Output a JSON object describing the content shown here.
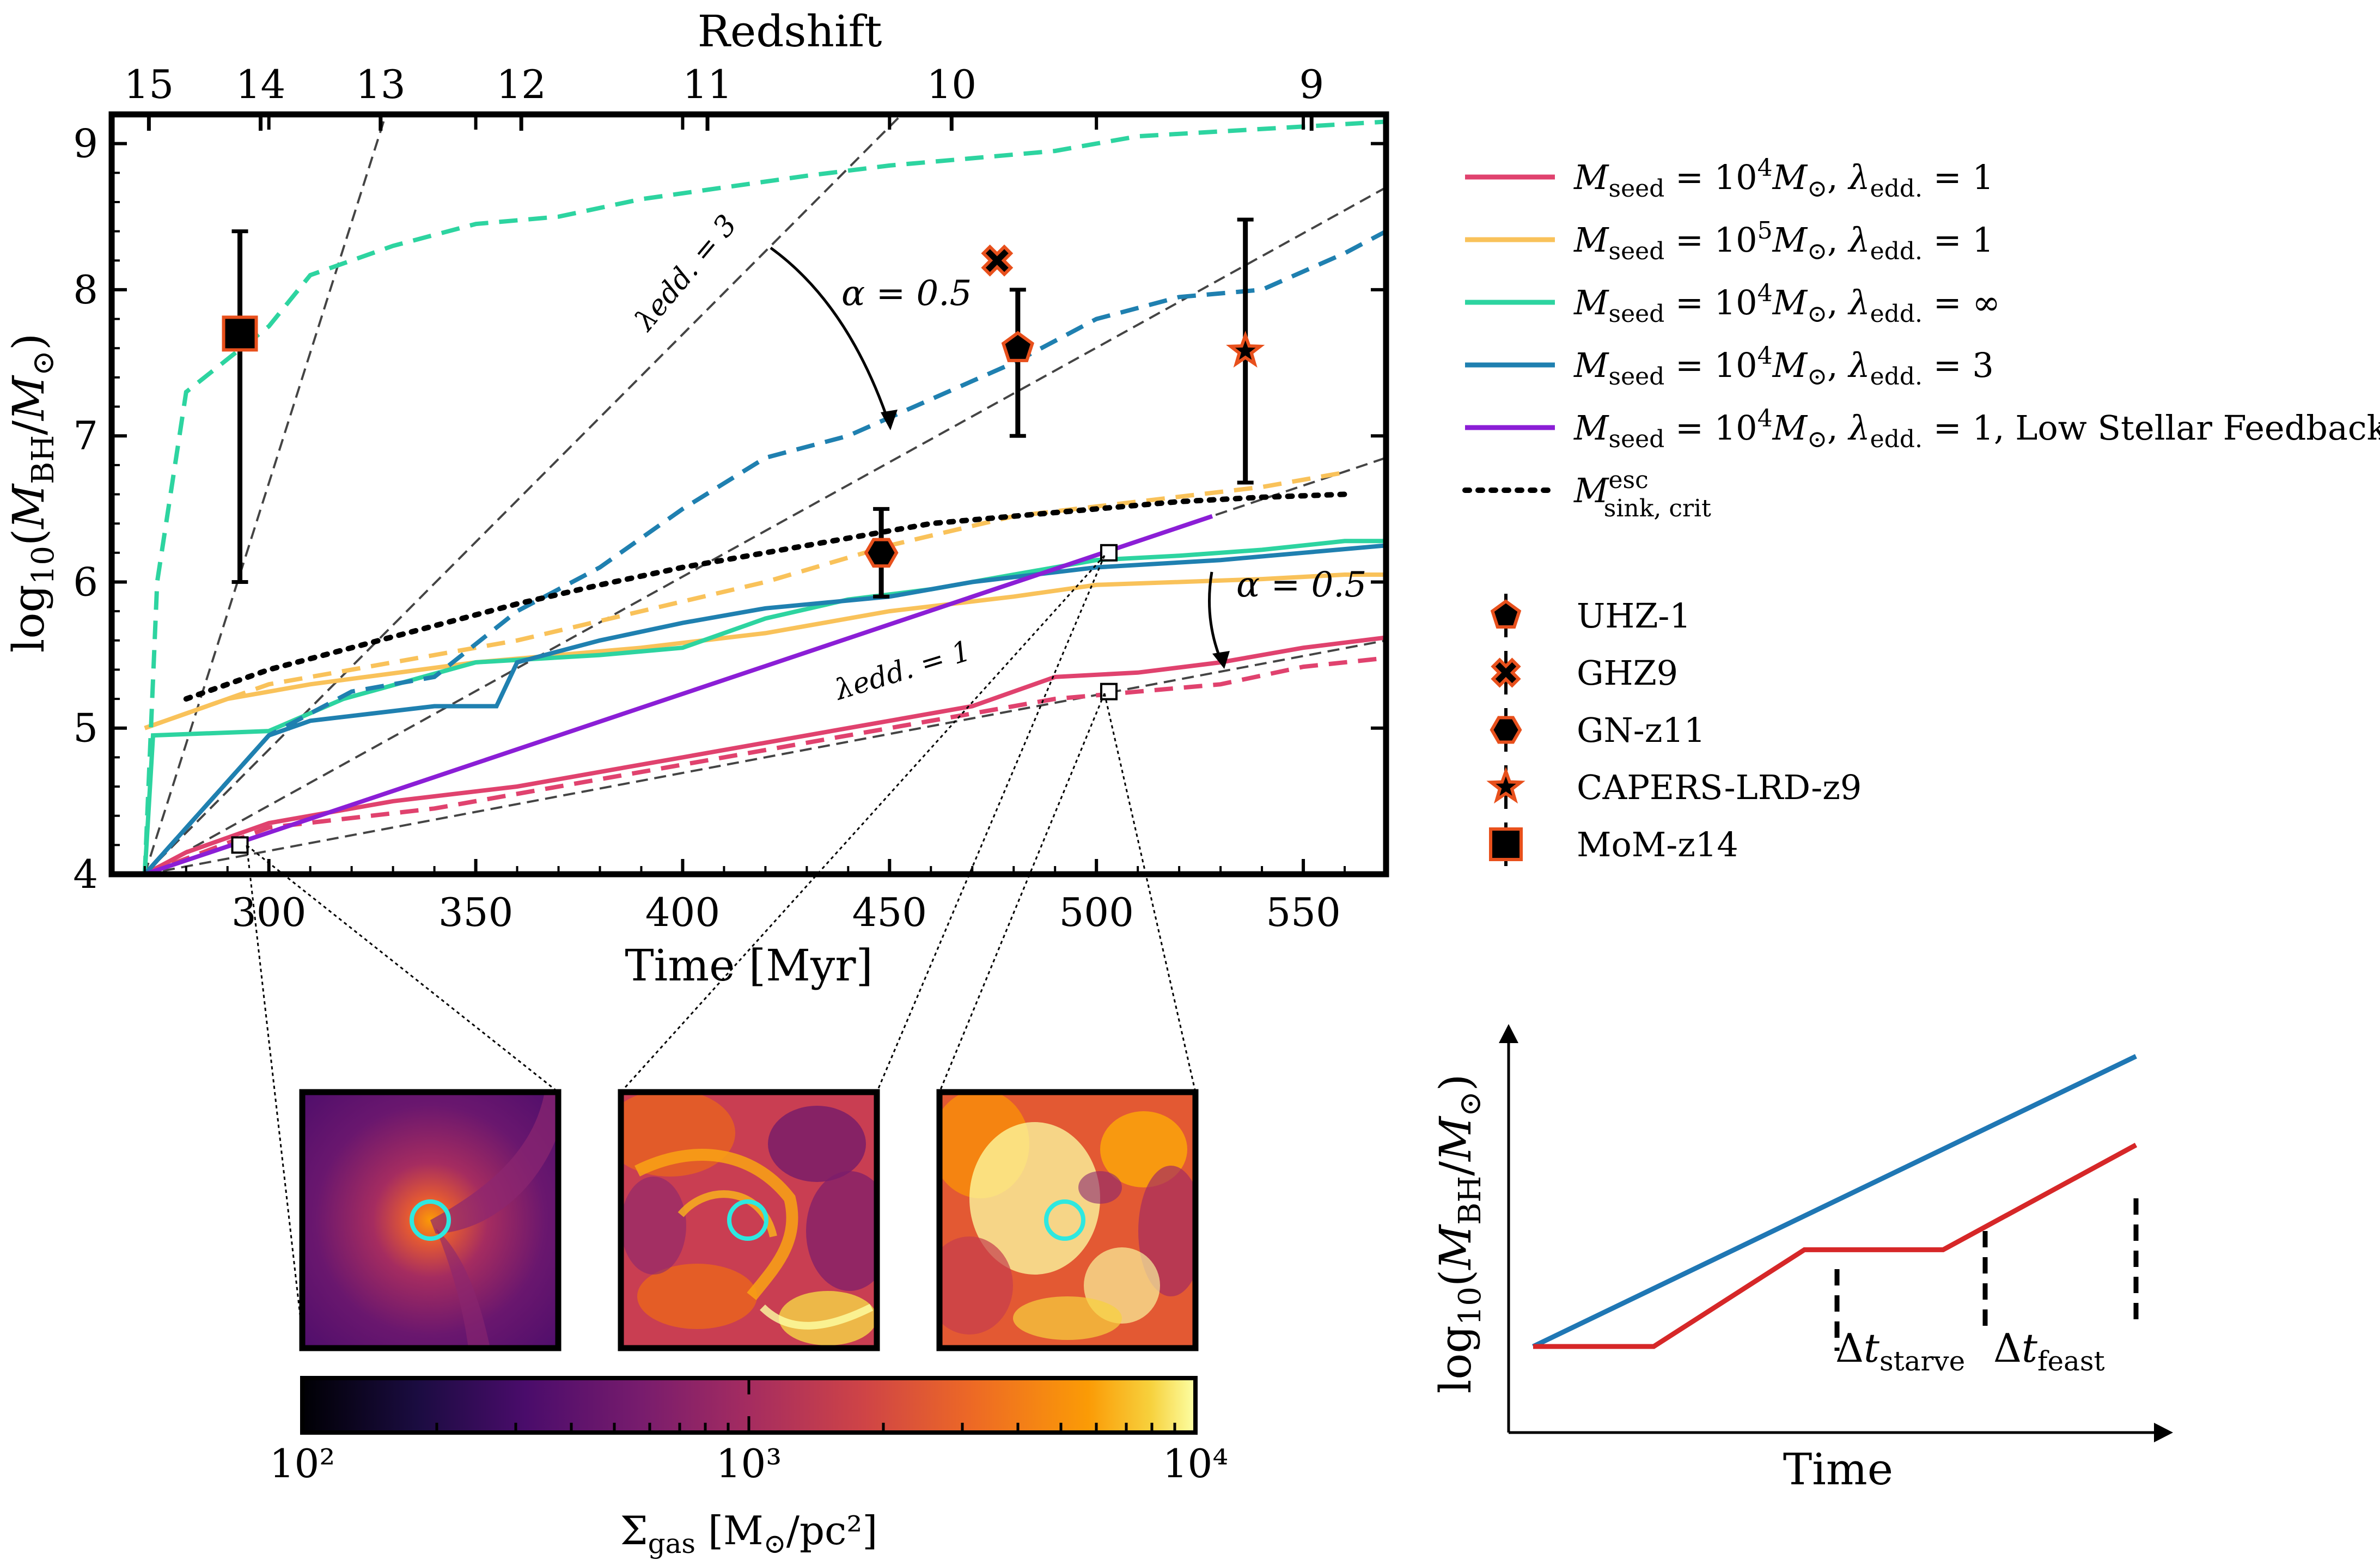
{
  "chart_data": [
    {
      "type": "line",
      "xlabel": "Time [Myr]",
      "ylabel": "log₁₀(M_BH/M_⊙)",
      "top_xlabel": "Redshift",
      "xlim": [
        262,
        570
      ],
      "ylim": [
        4,
        9.2
      ],
      "x_ticks": [
        "300",
        "350",
        "400",
        "450",
        "500",
        "550"
      ],
      "y_ticks": [
        "4",
        "5",
        "6",
        "7",
        "8",
        "9"
      ],
      "top_ticks": [
        {
          "label": "15",
          "t": 271
        },
        {
          "label": "14",
          "t": 298
        },
        {
          "label": "13",
          "t": 327
        },
        {
          "label": "12",
          "t": 361
        },
        {
          "label": "11",
          "t": 406
        },
        {
          "label": "10",
          "t": 465
        },
        {
          "label": "9",
          "t": 552
        }
      ],
      "legend_position": "right",
      "series": [
        {
          "name": "Mseed=10⁴M⊙, λedd.=1",
          "color": "#e0426e",
          "dash": "solid",
          "x": [
            270,
            280,
            300,
            330,
            360,
            400,
            440,
            470,
            490,
            510,
            530,
            550,
            570
          ],
          "y": [
            4.0,
            4.15,
            4.35,
            4.5,
            4.6,
            4.8,
            5.0,
            5.15,
            5.35,
            5.38,
            5.45,
            5.55,
            5.62
          ]
        },
        {
          "name": "",
          "color": "#e0426e",
          "dash": "dashed",
          "x": [
            270,
            300,
            340,
            380,
            420,
            460,
            490,
            510,
            530,
            550,
            570
          ],
          "y": [
            4.0,
            4.32,
            4.45,
            4.65,
            4.85,
            5.05,
            5.2,
            5.25,
            5.3,
            5.42,
            5.48
          ]
        },
        {
          "name": "Mseed=10⁵M⊙, λedd.=1",
          "color": "#f9c25a",
          "dash": "solid",
          "x": [
            270,
            290,
            310,
            350,
            390,
            420,
            450,
            480,
            500,
            520,
            540,
            560,
            570
          ],
          "y": [
            5.0,
            5.2,
            5.3,
            5.45,
            5.55,
            5.65,
            5.8,
            5.9,
            5.98,
            6.0,
            6.02,
            6.05,
            6.05
          ]
        },
        {
          "name": "",
          "color": "#f9c25a",
          "dash": "dashed",
          "x": [
            270,
            300,
            330,
            360,
            390,
            420,
            450,
            480,
            510,
            540,
            560
          ],
          "y": [
            5.0,
            5.3,
            5.45,
            5.6,
            5.8,
            6.0,
            6.25,
            6.45,
            6.55,
            6.65,
            6.75
          ]
        },
        {
          "name": "Mseed=10⁴M⊙, λedd.=∞",
          "color": "#2dd4a0",
          "dash": "solid",
          "x": [
            270,
            272,
            300,
            318,
            350,
            380,
            400,
            420,
            440,
            460,
            480,
            500,
            520,
            540,
            560,
            570
          ],
          "y": [
            4.0,
            4.95,
            4.98,
            5.2,
            5.45,
            5.5,
            5.55,
            5.75,
            5.88,
            5.95,
            6.05,
            6.15,
            6.18,
            6.22,
            6.28,
            6.28
          ]
        },
        {
          "name": "",
          "color": "#2dd4a0",
          "dash": "dashed",
          "x": [
            270,
            273,
            280,
            300,
            310,
            330,
            350,
            370,
            390,
            410,
            430,
            450,
            470,
            490,
            510,
            540,
            570
          ],
          "y": [
            4.0,
            6.0,
            7.3,
            7.75,
            8.1,
            8.3,
            8.45,
            8.5,
            8.62,
            8.7,
            8.78,
            8.85,
            8.9,
            8.95,
            9.05,
            9.1,
            9.15
          ]
        },
        {
          "name": "Mseed=10⁴M⊙, λedd.=3",
          "color": "#1f80b0",
          "dash": "solid",
          "x": [
            270,
            300,
            310,
            340,
            355,
            360,
            380,
            400,
            420,
            450,
            470,
            500,
            530,
            550,
            570
          ],
          "y": [
            4.0,
            4.95,
            5.05,
            5.15,
            5.15,
            5.45,
            5.6,
            5.72,
            5.82,
            5.9,
            6.0,
            6.1,
            6.15,
            6.2,
            6.25
          ]
        },
        {
          "name": "",
          "color": "#1f80b0",
          "dash": "dashed",
          "x": [
            270,
            300,
            320,
            340,
            360,
            380,
            400,
            420,
            440,
            460,
            480,
            500,
            520,
            540,
            560,
            570
          ],
          "y": [
            4.0,
            4.95,
            5.25,
            5.35,
            5.8,
            6.1,
            6.5,
            6.85,
            7.0,
            7.25,
            7.5,
            7.8,
            7.95,
            8.0,
            8.25,
            8.4
          ]
        },
        {
          "name": "Mseed=10⁴M⊙, λedd.=1, Low Stellar Feedback",
          "color": "#8b1ed6",
          "dash": "solid",
          "x": [
            270,
            528
          ],
          "y": [
            4.0,
            6.45
          ]
        },
        {
          "name": "M_esc sink,crit",
          "color": "#000000",
          "dash": "dotted",
          "x": [
            280,
            300,
            320,
            340,
            360,
            380,
            400,
            420,
            440,
            460,
            480,
            500,
            520,
            540,
            560
          ],
          "y": [
            5.2,
            5.4,
            5.55,
            5.7,
            5.85,
            5.98,
            6.1,
            6.2,
            6.3,
            6.4,
            6.45,
            6.5,
            6.55,
            6.58,
            6.6
          ]
        }
      ],
      "reference_lines": [
        {
          "label": "λedd.=3",
          "x": [
            270,
            460
          ],
          "y": [
            4.0,
            9.4
          ]
        },
        {
          "label": "",
          "x": [
            270,
            335
          ],
          "y": [
            4.0,
            9.8
          ]
        },
        {
          "label": "",
          "x": [
            270,
            570
          ],
          "y": [
            4.0,
            8.7
          ]
        },
        {
          "label": "λedd.=1",
          "x": [
            270,
            570
          ],
          "y": [
            4.0,
            6.85
          ]
        },
        {
          "label": "",
          "x": [
            270,
            570
          ],
          "y": [
            4.0,
            5.6
          ]
        }
      ],
      "annotations": [
        {
          "text": "α=0.5",
          "at": [
            458,
            7.95
          ]
        },
        {
          "text": "α=0.5",
          "at": [
            545,
            5.95
          ]
        }
      ],
      "observations": [
        {
          "name": "UHZ-1",
          "marker": "pentagon",
          "t": 481,
          "y": 7.6,
          "yerr": [
            0.6,
            0.4
          ]
        },
        {
          "name": "GHZ9",
          "marker": "x",
          "t": 476,
          "y": 8.2,
          "yerr": [
            0,
            0
          ]
        },
        {
          "name": "GN-z11",
          "marker": "hexagon",
          "t": 448,
          "y": 6.2,
          "yerr": [
            0.3,
            0.3
          ]
        },
        {
          "name": "CAPERS-LRD-z9",
          "marker": "star",
          "t": 536,
          "y": 7.58,
          "yerr": [
            0.9,
            0.9
          ]
        },
        {
          "name": "MoM-z14",
          "marker": "square",
          "t": 293,
          "y": 7.7,
          "yerr": [
            1.7,
            0.7
          ]
        }
      ],
      "snapshot_markers": [
        {
          "t": 293,
          "y": 4.2
        },
        {
          "t": 503,
          "y": 6.2
        },
        {
          "t": 503,
          "y": 5.25
        }
      ]
    },
    {
      "type": "heatmap",
      "colorbar_label": "Σgas [M⊙/pc²]",
      "colorbar_ticks": [
        "10²",
        "10³",
        "10⁴"
      ],
      "colormap": "inferno",
      "panels": 3
    },
    {
      "type": "line",
      "xlabel": "Time",
      "ylabel": "log₁₀(M_BH/M_⊙)",
      "series": [
        {
          "name": "",
          "color": "#1f77b4",
          "x": [
            0,
            1
          ],
          "y": [
            0.2,
            0.92
          ]
        },
        {
          "name": "",
          "color": "#d62728",
          "x": [
            0,
            0.2,
            0.45,
            0.68,
            1
          ],
          "y": [
            0.2,
            0.2,
            0.44,
            0.44,
            0.7
          ]
        }
      ],
      "annotations": [
        {
          "text": "Δt starve"
        },
        {
          "text": "Δt feast"
        }
      ]
    }
  ],
  "labels": {
    "redshift": "Redshift",
    "time": "Time [Myr]",
    "lam3": "λedd. = 3",
    "lam1": "λedd. = 1",
    "alpha": "α = 0.5",
    "schem_time": "Time"
  },
  "legend": [
    {
      "key": "l1",
      "mseed": "10",
      "exp": "4",
      "lam": "1",
      "extra": ""
    },
    {
      "key": "l2",
      "mseed": "10",
      "exp": "5",
      "lam": "1",
      "extra": ""
    },
    {
      "key": "l3",
      "mseed": "10",
      "exp": "4",
      "lam": "∞",
      "extra": ""
    },
    {
      "key": "l4",
      "mseed": "10",
      "exp": "4",
      "lam": "3",
      "extra": ""
    },
    {
      "key": "l5",
      "mseed": "10",
      "exp": "4",
      "lam": "1",
      "extra": ", Low Stellar Feedback"
    }
  ]
}
